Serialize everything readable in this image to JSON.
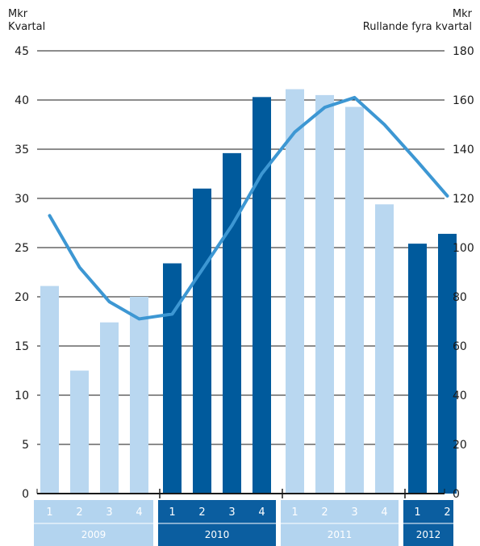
{
  "header": {
    "left_unit": "Mkr",
    "left_label": "Kvartal",
    "right_unit": "Mkr",
    "right_label": "Rullande fyra kvartal"
  },
  "chart_data": {
    "type": "bar",
    "categories": [
      "1",
      "2",
      "3",
      "4",
      "1",
      "2",
      "3",
      "4",
      "1",
      "2",
      "3",
      "4",
      "1",
      "2"
    ],
    "years": [
      {
        "label": "2009",
        "quarters": 4,
        "shade": "light"
      },
      {
        "label": "2010",
        "quarters": 4,
        "shade": "dark"
      },
      {
        "label": "2011",
        "quarters": 4,
        "shade": "light"
      },
      {
        "label": "2012",
        "quarters": 2,
        "shade": "dark"
      }
    ],
    "series": [
      {
        "type": "bar",
        "axis": "left",
        "values": [
          21.1,
          12.5,
          17.4,
          20.0,
          23.4,
          31.0,
          34.6,
          40.3,
          41.1,
          40.5,
          39.3,
          29.4,
          25.4,
          26.4
        ]
      },
      {
        "type": "line",
        "axis": "right",
        "values": [
          113,
          92,
          78,
          71,
          73,
          91,
          109,
          130,
          147,
          157,
          161,
          150,
          135,
          121
        ]
      }
    ],
    "y_left": {
      "min": 0,
      "max": 45,
      "step": 5
    },
    "y_right": {
      "min": 0,
      "max": 180,
      "step": 20
    },
    "grid": true,
    "colors": {
      "light_bar": "#b9d7f0",
      "dark_bar": "#005a9c",
      "line": "#3d97d3",
      "light_band": "#b3d4ef",
      "dark_band": "#0b5ea0"
    }
  }
}
